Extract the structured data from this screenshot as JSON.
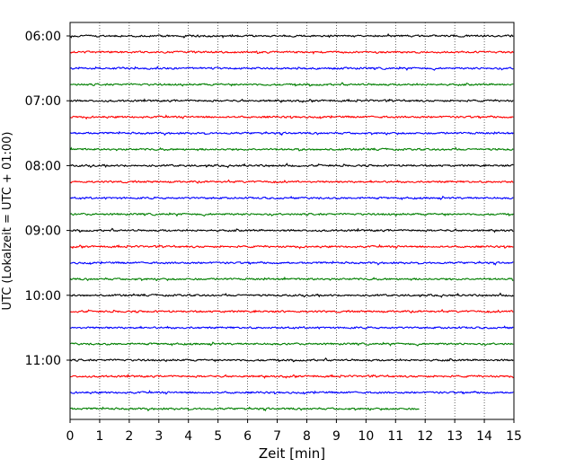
{
  "chart_data": {
    "type": "line",
    "xlabel": "Zeit  [min]",
    "ylabel": "UTC (Lokalzeit = UTC + 01:00)",
    "xlim": [
      0,
      15
    ],
    "x_ticks": [
      0,
      1,
      2,
      3,
      4,
      5,
      6,
      7,
      8,
      9,
      10,
      11,
      12,
      13,
      14,
      15
    ],
    "y_tick_labels": [
      "06:00",
      "07:00",
      "08:00",
      "09:00",
      "10:00",
      "11:00"
    ],
    "grid": "vertical-dotted",
    "trace_interval_minutes": 15,
    "start_time": "06:00",
    "trace_colors": [
      "#000000",
      "#ff0000",
      "#0000ff",
      "#007f00"
    ],
    "traces": [
      {
        "time": "06:00",
        "end_minute": 15,
        "color": "#000000"
      },
      {
        "time": "06:15",
        "end_minute": 15,
        "color": "#ff0000"
      },
      {
        "time": "06:30",
        "end_minute": 15,
        "color": "#0000ff"
      },
      {
        "time": "06:45",
        "end_minute": 15,
        "color": "#007f00"
      },
      {
        "time": "07:00",
        "end_minute": 15,
        "color": "#000000"
      },
      {
        "time": "07:15",
        "end_minute": 15,
        "color": "#ff0000"
      },
      {
        "time": "07:30",
        "end_minute": 15,
        "color": "#0000ff"
      },
      {
        "time": "07:45",
        "end_minute": 15,
        "color": "#007f00"
      },
      {
        "time": "08:00",
        "end_minute": 15,
        "color": "#000000"
      },
      {
        "time": "08:15",
        "end_minute": 15,
        "color": "#ff0000"
      },
      {
        "time": "08:30",
        "end_minute": 15,
        "color": "#0000ff"
      },
      {
        "time": "08:45",
        "end_minute": 15,
        "color": "#007f00"
      },
      {
        "time": "09:00",
        "end_minute": 15,
        "color": "#000000"
      },
      {
        "time": "09:15",
        "end_minute": 15,
        "color": "#ff0000"
      },
      {
        "time": "09:30",
        "end_minute": 15,
        "color": "#0000ff"
      },
      {
        "time": "09:45",
        "end_minute": 15,
        "color": "#007f00"
      },
      {
        "time": "10:00",
        "end_minute": 15,
        "color": "#000000"
      },
      {
        "time": "10:15",
        "end_minute": 15,
        "color": "#ff0000"
      },
      {
        "time": "10:30",
        "end_minute": 15,
        "color": "#0000ff"
      },
      {
        "time": "10:45",
        "end_minute": 15,
        "color": "#007f00"
      },
      {
        "time": "11:00",
        "end_minute": 15,
        "color": "#000000"
      },
      {
        "time": "11:15",
        "end_minute": 15,
        "color": "#ff0000"
      },
      {
        "time": "11:30",
        "end_minute": 15,
        "color": "#0000ff"
      },
      {
        "time": "11:45",
        "end_minute": 11.8,
        "color": "#007f00"
      }
    ]
  }
}
